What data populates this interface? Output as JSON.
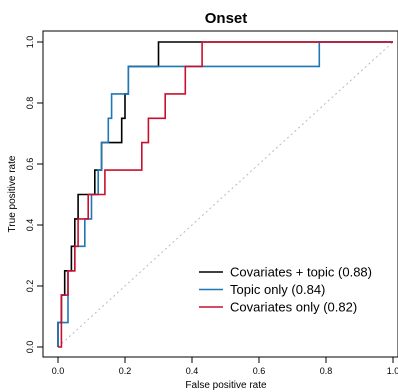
{
  "chart_data": {
    "type": "line",
    "title": "Onset",
    "xlabel": "False positive rate",
    "ylabel": "True positive rate",
    "xlim": [
      0,
      1
    ],
    "ylim": [
      0,
      1
    ],
    "x_ticks": [
      0.0,
      0.2,
      0.4,
      0.6,
      0.8,
      1.0
    ],
    "x_tick_labels": [
      "0.0",
      "0.2",
      "0.4",
      "0.6",
      "0.8",
      "1.0"
    ],
    "y_ticks": [
      0.0,
      0.2,
      0.4,
      0.6,
      0.8,
      1.0
    ],
    "y_tick_labels": [
      "0.0",
      "0.2",
      "0.4",
      "0.6",
      "0.8",
      "1.0"
    ],
    "grid": false,
    "legend_position": "bottom-right",
    "reference_line": {
      "style": "dotted",
      "color": "#bbbbbb",
      "from": [
        0,
        0
      ],
      "to": [
        1,
        1
      ]
    },
    "series": [
      {
        "name": "Covariates + topic (0.88)",
        "color": "#000000",
        "x": [
          0.0,
          0.0,
          0.01,
          0.01,
          0.02,
          0.02,
          0.04,
          0.04,
          0.05,
          0.05,
          0.06,
          0.06,
          0.07,
          0.07,
          0.11,
          0.11,
          0.13,
          0.13,
          0.14,
          0.14,
          0.19,
          0.19,
          0.2,
          0.2,
          0.21,
          0.21,
          0.3,
          0.3,
          1.0
        ],
        "y": [
          0.0,
          0.08,
          0.08,
          0.17,
          0.17,
          0.25,
          0.25,
          0.33,
          0.33,
          0.42,
          0.42,
          0.5,
          0.5,
          0.5,
          0.5,
          0.58,
          0.58,
          0.67,
          0.67,
          0.67,
          0.67,
          0.75,
          0.75,
          0.83,
          0.83,
          0.92,
          0.92,
          1.0,
          1.0
        ]
      },
      {
        "name": "Topic only (0.84)",
        "color": "#1f77b4",
        "x": [
          0.0,
          0.0,
          0.03,
          0.03,
          0.05,
          0.05,
          0.08,
          0.08,
          0.1,
          0.1,
          0.12,
          0.12,
          0.13,
          0.13,
          0.15,
          0.15,
          0.16,
          0.16,
          0.17,
          0.17,
          0.21,
          0.21,
          0.78,
          0.78,
          1.0
        ],
        "y": [
          0.0,
          0.08,
          0.08,
          0.25,
          0.25,
          0.33,
          0.33,
          0.42,
          0.42,
          0.5,
          0.5,
          0.58,
          0.58,
          0.67,
          0.67,
          0.75,
          0.75,
          0.83,
          0.83,
          0.83,
          0.83,
          0.92,
          0.92,
          1.0,
          1.0
        ]
      },
      {
        "name": "Covariates only (0.82)",
        "color": "#c8102e",
        "x": [
          0.0,
          0.0,
          0.01,
          0.01,
          0.03,
          0.03,
          0.05,
          0.05,
          0.06,
          0.06,
          0.09,
          0.09,
          0.14,
          0.14,
          0.17,
          0.17,
          0.25,
          0.25,
          0.27,
          0.27,
          0.32,
          0.32,
          0.34,
          0.34,
          0.38,
          0.38,
          0.43,
          0.43,
          1.0
        ],
        "y": [
          0.0,
          0.0,
          0.0,
          0.17,
          0.17,
          0.25,
          0.25,
          0.33,
          0.33,
          0.42,
          0.42,
          0.5,
          0.5,
          0.58,
          0.58,
          0.58,
          0.58,
          0.67,
          0.67,
          0.75,
          0.75,
          0.83,
          0.83,
          0.83,
          0.83,
          0.92,
          0.92,
          1.0,
          1.0
        ]
      }
    ]
  }
}
